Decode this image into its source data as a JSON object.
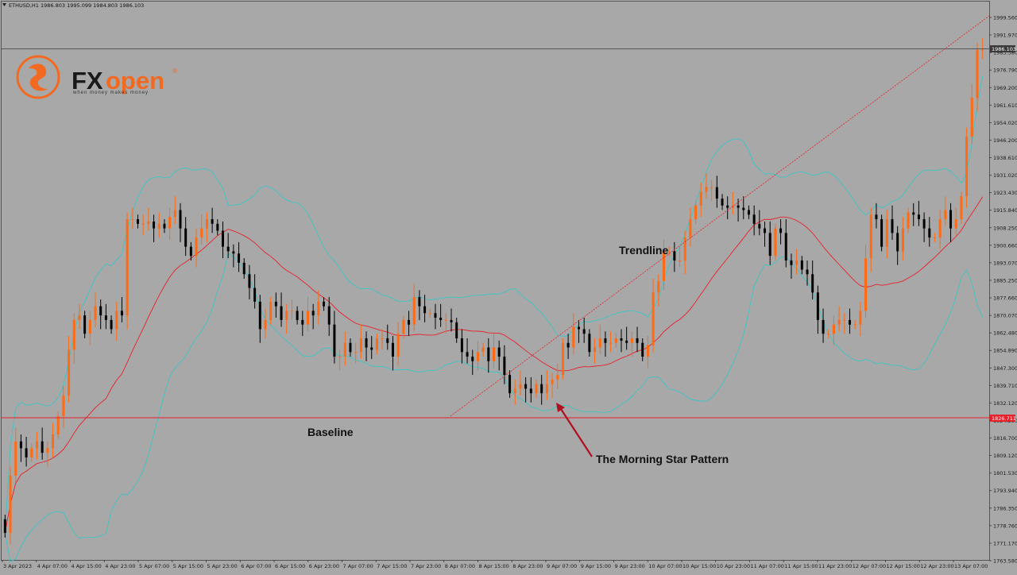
{
  "header": {
    "symbol_info": "ETHUSD,H1  1986.803 1995.099 1984.803 1986.103"
  },
  "logo": {
    "wordmark_fx": "FX",
    "wordmark_open": "open",
    "registered": "®",
    "tagline": "when money makes money"
  },
  "annotations": {
    "trendline": "Trendline",
    "baseline": "Baseline",
    "pattern": "The Morning Star Pattern"
  },
  "price_tags": {
    "current": "1986.103",
    "baseline": "1826.711"
  },
  "colors": {
    "background": "#a8a8a8",
    "bull": "#ff6a13",
    "bear": "#000000",
    "bollinger": "#3fc4c4",
    "moving_average": "#e8202a",
    "trendline": "#e8202a",
    "baseline": "#e8202a",
    "current_price_line": "#555555",
    "arrow": "#b01020",
    "brand_orange": "#f26a21"
  },
  "chart_data": {
    "type": "candlestick",
    "symbol": "ETHUSD",
    "timeframe": "H1",
    "y_ticks": [
      "1999.560",
      "1991.970",
      "1983.380",
      "1976.790",
      "1969.200",
      "1961.610",
      "1954.020",
      "1946.200",
      "1938.610",
      "1931.020",
      "1923.430",
      "1915.840",
      "1908.250",
      "1900.660",
      "1893.070",
      "1885.250",
      "1877.660",
      "1870.070",
      "1862.480",
      "1854.890",
      "1847.300",
      "1839.710",
      "1832.120",
      "1824.280",
      "1816.700",
      "1809.120",
      "1801.530",
      "1793.940",
      "1786.350",
      "1778.760",
      "1771.170",
      "1763.580"
    ],
    "x_ticks": [
      "3 Apr 2023",
      "4 Apr 07:00",
      "4 Apr 15:00",
      "4 Apr 23:00",
      "5 Apr 07:00",
      "5 Apr 15:00",
      "5 Apr 23:00",
      "6 Apr 07:00",
      "6 Apr 15:00",
      "6 Apr 23:00",
      "7 Apr 07:00",
      "7 Apr 15:00",
      "7 Apr 23:00",
      "8 Apr 07:00",
      "8 Apr 15:00",
      "8 Apr 23:00",
      "9 Apr 07:00",
      "9 Apr 15:00",
      "9 Apr 23:00",
      "10 Apr 07:00",
      "10 Apr 15:00",
      "10 Apr 23:00",
      "11 Apr 07:00",
      "11 Apr 15:00",
      "11 Apr 23:00",
      "12 Apr 07:00",
      "12 Apr 15:00",
      "12 Apr 23:00",
      "13 Apr 07:00"
    ],
    "ylim": [
      1763.58,
      2000.8
    ],
    "closes": [
      1775,
      1800,
      1815,
      1812,
      1808,
      1812,
      1815,
      1810,
      1812,
      1818,
      1826,
      1835,
      1855,
      1868,
      1870,
      1862,
      1868,
      1874,
      1870,
      1868,
      1864,
      1872,
      1870,
      1912,
      1912,
      1910,
      1910,
      1911,
      1908,
      1910,
      1908,
      1913,
      1916,
      1908,
      1900,
      1896,
      1904,
      1908,
      1912,
      1910,
      1907,
      1900,
      1898,
      1897,
      1893,
      1888,
      1882,
      1876,
      1864,
      1868,
      1876,
      1874,
      1868,
      1872,
      1872,
      1868,
      1866,
      1872,
      1870,
      1876,
      1874,
      1866,
      1852,
      1852,
      1858,
      1854,
      1854,
      1860,
      1856,
      1855,
      1860,
      1860,
      1858,
      1852,
      1862,
      1868,
      1866,
      1878,
      1874,
      1871,
      1871,
      1869,
      1868,
      1868,
      1867,
      1860,
      1854,
      1852,
      1850,
      1854,
      1856,
      1850,
      1856,
      1852,
      1844,
      1836,
      1838,
      1840,
      1838,
      1836,
      1840,
      1836,
      1840,
      1842,
      1844,
      1858,
      1856,
      1865,
      1864,
      1862,
      1854,
      1856,
      1860,
      1858,
      1858,
      1860,
      1859,
      1858,
      1860,
      1858,
      1852,
      1857,
      1880,
      1885,
      1898,
      1898,
      1894,
      1894,
      1904,
      1912,
      1918,
      1924,
      1926,
      1926,
      1921,
      1918,
      1917,
      1918,
      1917,
      1916,
      1914,
      1910,
      1908,
      1906,
      1896,
      1908,
      1906,
      1894,
      1892,
      1894,
      1890,
      1888,
      1880,
      1868,
      1862,
      1862,
      1866,
      1868,
      1868,
      1866,
      1866,
      1872,
      1895,
      1914,
      1912,
      1900,
      1912,
      1906,
      1898,
      1908,
      1915,
      1914,
      1912,
      1908,
      1904,
      1904,
      1912,
      1916,
      1908,
      1912,
      1922,
      1948,
      1965,
      1986,
      1986
    ]
  }
}
